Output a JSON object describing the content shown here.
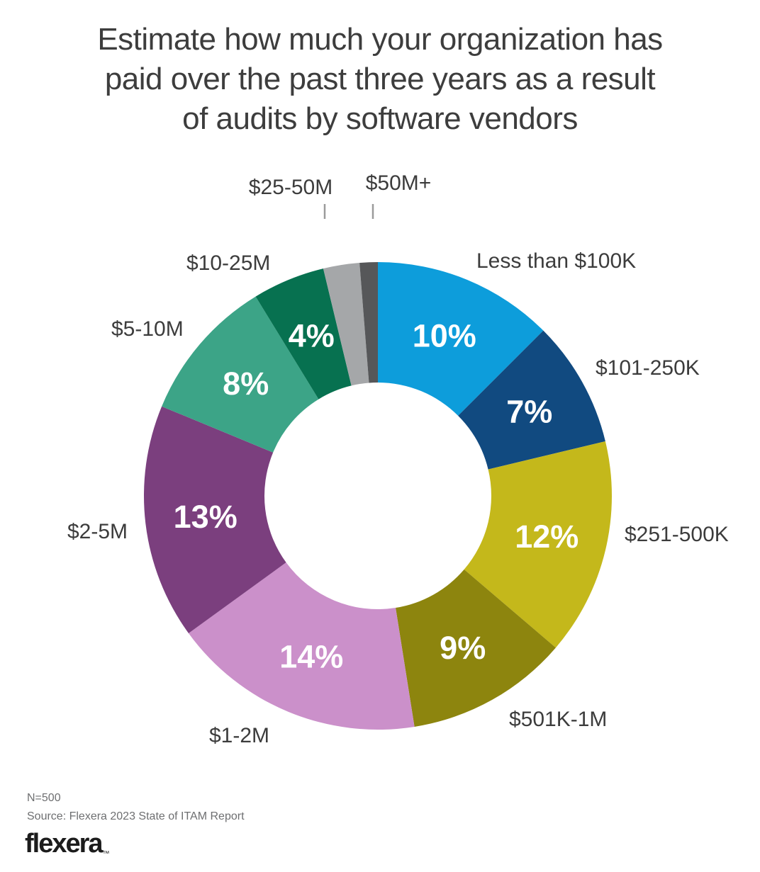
{
  "title_lines": [
    "Estimate how much your organization has",
    "paid over the past three years as a result",
    "of audits by software vendors"
  ],
  "chart_data": {
    "type": "pie",
    "variant": "donut",
    "title": "Estimate how much your organization has paid over the past three years as a result of audits by software vendors",
    "unit": "percent",
    "start_angle_deg": 0,
    "direction": "clockwise",
    "legend_position": "none",
    "label_style": "percent-inside-segments, category-labels-outside",
    "segments": [
      {
        "label": "Less than $100K",
        "value": 10,
        "pct_label": "10%",
        "color": "#0D9DDB"
      },
      {
        "label": "$101-250K",
        "value": 7,
        "pct_label": "7%",
        "color": "#114A80"
      },
      {
        "label": "$251-500K",
        "value": 12,
        "pct_label": "12%",
        "color": "#C4B81B"
      },
      {
        "label": "$501K-1M",
        "value": 9,
        "pct_label": "9%",
        "color": "#8D850E"
      },
      {
        "label": "$1-2M",
        "value": 14,
        "pct_label": "14%",
        "color": "#CB90CA"
      },
      {
        "label": "$2-5M",
        "value": 13,
        "pct_label": "13%",
        "color": "#7B3F7E"
      },
      {
        "label": "$5-10M",
        "value": 8,
        "pct_label": "8%",
        "color": "#3CA487"
      },
      {
        "label": "$10-25M",
        "value": 4,
        "pct_label": "4%",
        "color": "#077150"
      },
      {
        "label": "$25-50M",
        "value": 2,
        "pct_label": "2%",
        "color": "#A5A7A9",
        "pct_label_outside": true
      },
      {
        "label": "$50M+",
        "value": 1,
        "pct_label": "1%",
        "color": "#565759",
        "pct_label_outside": true
      }
    ]
  },
  "footer": {
    "n": "N=500",
    "source": "Source: Flexera 2023 State of ITAM Report",
    "logo_text": "flexera",
    "trademark_symbol": "™"
  }
}
